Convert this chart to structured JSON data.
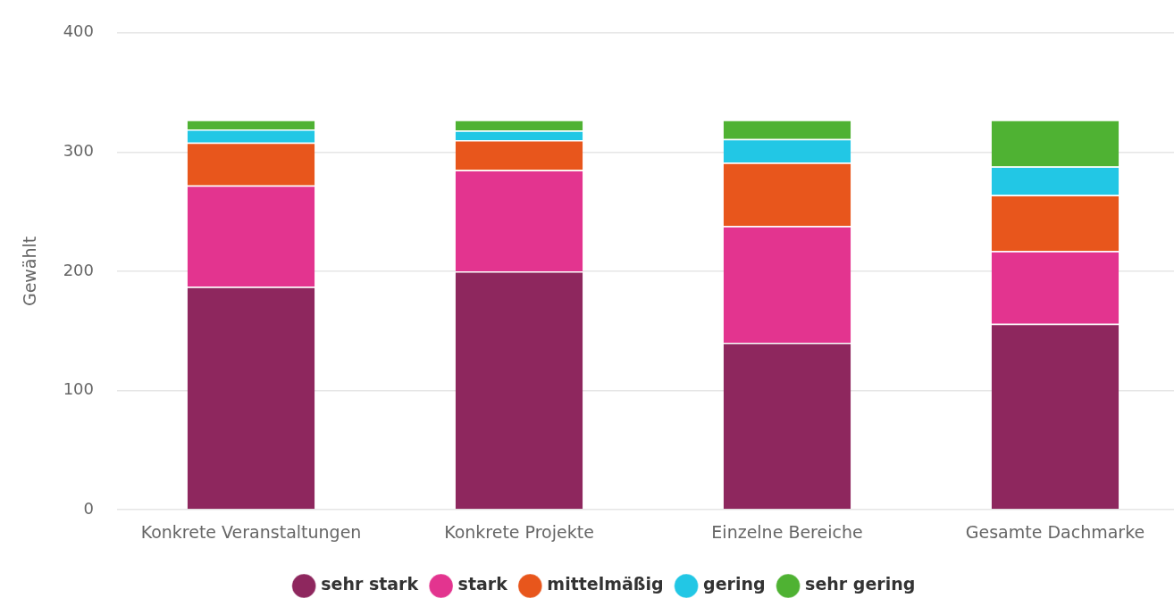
{
  "chart_data": {
    "type": "bar",
    "stacked": true,
    "categories": [
      "Konkrete Veranstaltungen",
      "Konkrete Projekte",
      "Einzelne Bereiche",
      "Gesamte Dachmarke"
    ],
    "series": [
      {
        "name": "sehr stark",
        "color": "#8e275e",
        "values": [
          187,
          200,
          140,
          156
        ]
      },
      {
        "name": "stark",
        "color": "#e3348f",
        "values": [
          85,
          85,
          98,
          61
        ]
      },
      {
        "name": "mittelmäßig",
        "color": "#e8561c",
        "values": [
          36,
          25,
          53,
          47
        ]
      },
      {
        "name": "gering",
        "color": "#22c7e5",
        "values": [
          11,
          8,
          20,
          24
        ]
      },
      {
        "name": "sehr gering",
        "color": "#4fb233",
        "values": [
          8,
          9,
          16,
          39
        ]
      }
    ],
    "ylabel": "Gewählt",
    "ylim": [
      0,
      400
    ],
    "yticks": [
      0,
      100,
      200,
      300,
      400
    ],
    "grid": "y",
    "legend": "bottom"
  }
}
